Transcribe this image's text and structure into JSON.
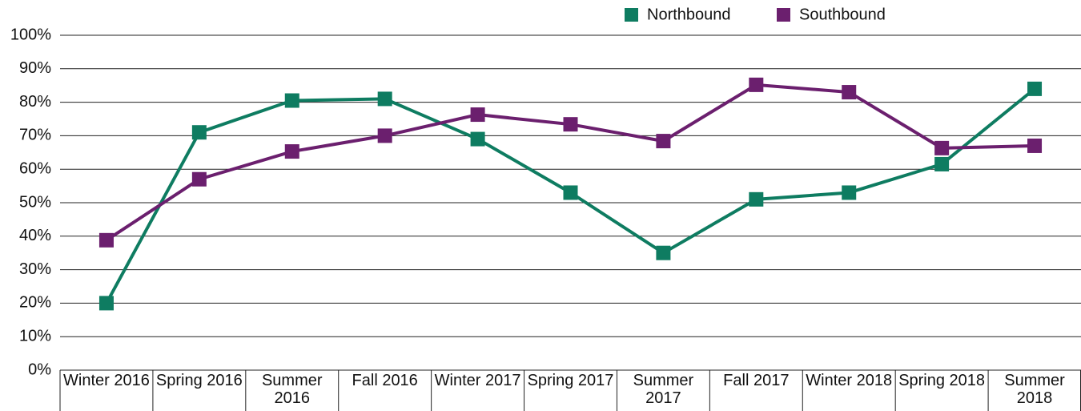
{
  "chart_data": {
    "type": "line",
    "categories": [
      "Winter 2016",
      "Spring 2016",
      "Summer 2016",
      "Fall 2016",
      "Winter 2017",
      "Spring 2017",
      "Summer 2017",
      "Fall 2017",
      "Winter 2018",
      "Spring 2018",
      "Summer 2018"
    ],
    "series": [
      {
        "name": "Northbound",
        "color": "#0e7c61",
        "values": [
          20,
          71,
          80.5,
          81,
          69,
          53,
          35,
          51,
          53,
          61.5,
          84
        ]
      },
      {
        "name": "Southbound",
        "color": "#6b1f6e",
        "values": [
          38.8,
          57,
          65.3,
          70,
          76.3,
          73.4,
          68.4,
          85.2,
          83,
          66.3,
          67
        ]
      }
    ],
    "ylim": [
      0,
      100
    ],
    "yticks": [
      {
        "value": 0,
        "label": "0%"
      },
      {
        "value": 10,
        "label": "10%"
      },
      {
        "value": 20,
        "label": "20%"
      },
      {
        "value": 30,
        "label": "30%"
      },
      {
        "value": 40,
        "label": "40%"
      },
      {
        "value": 50,
        "label": "50%"
      },
      {
        "value": 60,
        "label": "60%"
      },
      {
        "value": 70,
        "label": "70%"
      },
      {
        "value": 80,
        "label": "80%"
      },
      {
        "value": 90,
        "label": "90%"
      },
      {
        "value": 100,
        "label": "100%"
      }
    ],
    "grid": true,
    "legend": "top-right"
  }
}
